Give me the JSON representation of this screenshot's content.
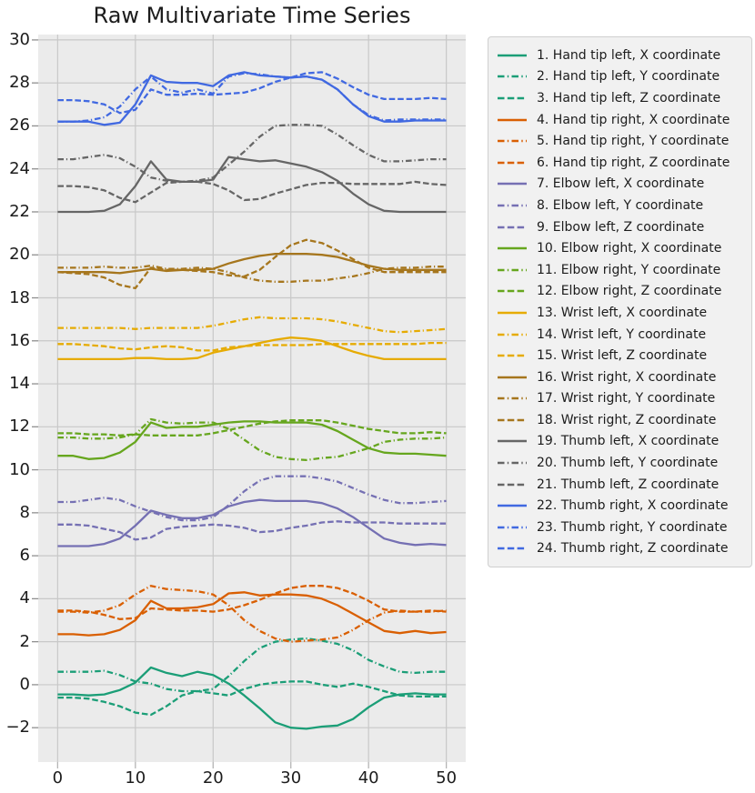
{
  "styles": {
    "plot_bg": "#ebebeb",
    "grid_color": "#c8c8c8",
    "tick_mark_color": "#8f8f8f",
    "bottom_tick_color": "#b5b5b5",
    "text_color": "#1c1c1c",
    "legend_bg": "#f1f1f1",
    "legend_border": "#cfcfcf"
  },
  "axes": {
    "xlim": [
      -2.5,
      52.5
    ],
    "ylim": [
      -3.6,
      30.25
    ],
    "x_tick_values": [
      0,
      10,
      20,
      30,
      40,
      50
    ],
    "x_tick_labels": [
      "0",
      "10",
      "20",
      "30",
      "40",
      "50"
    ],
    "y_tick_values": [
      30,
      28,
      26,
      24,
      22,
      20,
      18,
      16,
      14,
      12,
      10,
      8,
      6,
      4,
      2,
      0,
      -2
    ],
    "y_tick_labels": [
      "30",
      "28",
      "26",
      "24",
      "22",
      "20",
      "18",
      "16",
      "14",
      "12",
      "10",
      "8",
      "6",
      "4",
      "2",
      "0",
      "−2"
    ]
  },
  "chart_data": {
    "type": "line",
    "title": "Raw Multivariate Time Series",
    "grid": true,
    "legend_position": "right",
    "xlim": [
      -2.5,
      52.5
    ],
    "ylim": [
      -3.6,
      30.25
    ],
    "x": [
      0,
      2,
      4,
      6,
      8,
      10,
      12,
      14,
      16,
      18,
      20,
      22,
      24,
      26,
      28,
      30,
      32,
      34,
      36,
      38,
      40,
      42,
      44,
      46,
      48,
      50
    ],
    "series": [
      {
        "name": "1. Hand tip left, X coordinate",
        "color": "#1b9e77",
        "dash": "solid",
        "values": [
          -0.45,
          -0.45,
          -0.5,
          -0.45,
          -0.25,
          0.1,
          0.8,
          0.55,
          0.4,
          0.6,
          0.45,
          0.05,
          -0.5,
          -1.1,
          -1.75,
          -2.0,
          -2.05,
          -1.95,
          -1.9,
          -1.6,
          -1.05,
          -0.6,
          -0.45,
          -0.4,
          -0.45,
          -0.45
        ]
      },
      {
        "name": "2. Hand tip left, Y coordinate",
        "color": "#1b9e77",
        "dash": "dashdot",
        "values": [
          0.6,
          0.6,
          0.6,
          0.65,
          0.45,
          0.15,
          0.05,
          -0.2,
          -0.3,
          -0.3,
          -0.2,
          0.4,
          1.1,
          1.7,
          2.0,
          2.1,
          2.15,
          2.05,
          1.9,
          1.6,
          1.15,
          0.85,
          0.6,
          0.55,
          0.6,
          0.6
        ]
      },
      {
        "name": "3. Hand tip left, Z coordinate",
        "color": "#1b9e77",
        "dash": "dashed",
        "values": [
          -0.6,
          -0.6,
          -0.65,
          -0.8,
          -1.0,
          -1.3,
          -1.4,
          -1.0,
          -0.5,
          -0.3,
          -0.4,
          -0.5,
          -0.2,
          0.0,
          0.1,
          0.15,
          0.15,
          0.0,
          -0.1,
          0.05,
          -0.1,
          -0.3,
          -0.5,
          -0.55,
          -0.55,
          -0.55
        ]
      },
      {
        "name": "4. Hand tip right, X coordinate",
        "color": "#d95f02",
        "dash": "solid",
        "values": [
          2.35,
          2.35,
          2.3,
          2.35,
          2.55,
          3.0,
          3.9,
          3.55,
          3.55,
          3.6,
          3.75,
          4.25,
          4.3,
          4.15,
          4.2,
          4.2,
          4.15,
          4.0,
          3.7,
          3.3,
          2.9,
          2.5,
          2.4,
          2.5,
          2.4,
          2.45
        ]
      },
      {
        "name": "5. Hand tip right, Y coordinate",
        "color": "#d95f02",
        "dash": "dashdot",
        "values": [
          3.4,
          3.4,
          3.35,
          3.45,
          3.7,
          4.2,
          4.6,
          4.45,
          4.4,
          4.35,
          4.2,
          3.7,
          3.0,
          2.5,
          2.15,
          2.0,
          2.05,
          2.1,
          2.2,
          2.55,
          3.0,
          3.35,
          3.45,
          3.4,
          3.4,
          3.45
        ]
      },
      {
        "name": "6. Hand tip right, Z coordinate",
        "color": "#d95f02",
        "dash": "dashed",
        "values": [
          3.45,
          3.45,
          3.4,
          3.25,
          3.05,
          3.1,
          3.55,
          3.5,
          3.45,
          3.45,
          3.4,
          3.5,
          3.7,
          3.95,
          4.25,
          4.5,
          4.6,
          4.6,
          4.5,
          4.25,
          3.9,
          3.5,
          3.4,
          3.4,
          3.45,
          3.4
        ]
      },
      {
        "name": "7. Elbow left, X coordinate",
        "color": "#7570b3",
        "dash": "solid",
        "values": [
          6.45,
          6.45,
          6.45,
          6.55,
          6.8,
          7.4,
          8.1,
          7.9,
          7.75,
          7.75,
          7.9,
          8.3,
          8.5,
          8.6,
          8.55,
          8.55,
          8.55,
          8.45,
          8.2,
          7.8,
          7.3,
          6.8,
          6.6,
          6.5,
          6.55,
          6.5
        ]
      },
      {
        "name": "8. Elbow left, Y coordinate",
        "color": "#7570b3",
        "dash": "dashdot",
        "values": [
          8.5,
          8.5,
          8.6,
          8.7,
          8.6,
          8.3,
          8.05,
          7.8,
          7.65,
          7.65,
          7.8,
          8.35,
          9.0,
          9.5,
          9.7,
          9.7,
          9.7,
          9.6,
          9.45,
          9.15,
          8.85,
          8.6,
          8.45,
          8.45,
          8.5,
          8.55
        ]
      },
      {
        "name": "9. Elbow left, Z coordinate",
        "color": "#7570b3",
        "dash": "dashed",
        "values": [
          7.45,
          7.45,
          7.4,
          7.25,
          7.1,
          6.75,
          6.85,
          7.25,
          7.35,
          7.4,
          7.45,
          7.4,
          7.3,
          7.1,
          7.15,
          7.3,
          7.4,
          7.55,
          7.6,
          7.55,
          7.55,
          7.55,
          7.5,
          7.5,
          7.5,
          7.5
        ]
      },
      {
        "name": "10. Elbow right, X coordinate",
        "color": "#66a61e",
        "dash": "solid",
        "values": [
          10.65,
          10.65,
          10.5,
          10.55,
          10.8,
          11.3,
          12.2,
          11.95,
          12.0,
          12.0,
          12.1,
          12.2,
          12.25,
          12.25,
          12.2,
          12.2,
          12.2,
          12.1,
          11.8,
          11.4,
          11.0,
          10.8,
          10.75,
          10.75,
          10.7,
          10.65
        ]
      },
      {
        "name": "11. Elbow right, Y coordinate",
        "color": "#66a61e",
        "dash": "dashdot",
        "values": [
          11.5,
          11.5,
          11.45,
          11.45,
          11.5,
          11.65,
          12.35,
          12.2,
          12.15,
          12.2,
          12.2,
          11.9,
          11.4,
          10.9,
          10.6,
          10.5,
          10.45,
          10.55,
          10.6,
          10.8,
          11.0,
          11.3,
          11.4,
          11.45,
          11.45,
          11.5
        ]
      },
      {
        "name": "12. Elbow right, Z coordinate",
        "color": "#66a61e",
        "dash": "dashed",
        "values": [
          11.7,
          11.7,
          11.65,
          11.65,
          11.6,
          11.65,
          11.6,
          11.6,
          11.6,
          11.6,
          11.7,
          11.85,
          12.0,
          12.15,
          12.25,
          12.3,
          12.3,
          12.3,
          12.2,
          12.05,
          11.9,
          11.8,
          11.7,
          11.7,
          11.75,
          11.7
        ]
      },
      {
        "name": "13. Wrist left, X coordinate",
        "color": "#e6ab02",
        "dash": "solid",
        "values": [
          15.15,
          15.15,
          15.15,
          15.15,
          15.15,
          15.2,
          15.2,
          15.15,
          15.15,
          15.2,
          15.45,
          15.6,
          15.75,
          15.9,
          16.05,
          16.15,
          16.1,
          16.0,
          15.75,
          15.5,
          15.3,
          15.15,
          15.15,
          15.15,
          15.15,
          15.15
        ]
      },
      {
        "name": "14. Wrist left, Y coordinate",
        "color": "#e6ab02",
        "dash": "dashdot",
        "values": [
          16.6,
          16.6,
          16.6,
          16.6,
          16.6,
          16.55,
          16.6,
          16.6,
          16.6,
          16.6,
          16.7,
          16.85,
          17.0,
          17.1,
          17.05,
          17.05,
          17.05,
          17.0,
          16.9,
          16.75,
          16.6,
          16.45,
          16.4,
          16.45,
          16.5,
          16.55
        ]
      },
      {
        "name": "15. Wrist left, Z coordinate",
        "color": "#e6ab02",
        "dash": "dashed",
        "values": [
          15.85,
          15.85,
          15.8,
          15.75,
          15.65,
          15.6,
          15.7,
          15.75,
          15.7,
          15.55,
          15.55,
          15.7,
          15.75,
          15.8,
          15.8,
          15.8,
          15.8,
          15.85,
          15.85,
          15.85,
          15.85,
          15.85,
          15.85,
          15.85,
          15.9,
          15.9
        ]
      },
      {
        "name": "16. Wrist right, X coordinate",
        "color": "#a6761d",
        "dash": "solid",
        "values": [
          19.2,
          19.2,
          19.2,
          19.2,
          19.15,
          19.25,
          19.35,
          19.25,
          19.3,
          19.3,
          19.35,
          19.6,
          19.8,
          19.95,
          20.05,
          20.05,
          20.05,
          20.0,
          19.9,
          19.7,
          19.5,
          19.35,
          19.3,
          19.3,
          19.3,
          19.3
        ]
      },
      {
        "name": "17. Wrist right, Y coordinate",
        "color": "#a6761d",
        "dash": "dashdot",
        "values": [
          19.4,
          19.4,
          19.4,
          19.45,
          19.4,
          19.4,
          19.5,
          19.35,
          19.35,
          19.4,
          19.35,
          19.2,
          18.95,
          18.8,
          18.75,
          18.75,
          18.8,
          18.8,
          18.9,
          19.0,
          19.15,
          19.35,
          19.4,
          19.4,
          19.45,
          19.45
        ]
      },
      {
        "name": "18. Wrist right, Z coordinate",
        "color": "#a6761d",
        "dash": "dashed",
        "values": [
          19.2,
          19.15,
          19.1,
          18.95,
          18.6,
          18.45,
          19.4,
          19.3,
          19.3,
          19.25,
          19.2,
          19.05,
          19.0,
          19.3,
          19.9,
          20.45,
          20.7,
          20.55,
          20.2,
          19.8,
          19.4,
          19.2,
          19.2,
          19.2,
          19.2,
          19.2
        ]
      },
      {
        "name": "19. Thumb left, X coordinate",
        "color": "#666666",
        "dash": "solid",
        "values": [
          22.0,
          22.0,
          22.0,
          22.05,
          22.35,
          23.2,
          24.35,
          23.5,
          23.4,
          23.4,
          23.5,
          24.55,
          24.45,
          24.35,
          24.4,
          24.25,
          24.1,
          23.85,
          23.45,
          22.85,
          22.35,
          22.05,
          22.0,
          22.0,
          22.0,
          22.0
        ]
      },
      {
        "name": "20. Thumb left, Y coordinate",
        "color": "#666666",
        "dash": "dashdot",
        "values": [
          24.45,
          24.45,
          24.55,
          24.65,
          24.5,
          24.1,
          23.6,
          23.45,
          23.4,
          23.45,
          23.6,
          24.2,
          24.8,
          25.5,
          26.0,
          26.05,
          26.05,
          26.0,
          25.6,
          25.1,
          24.65,
          24.35,
          24.35,
          24.4,
          24.45,
          24.45
        ]
      },
      {
        "name": "21. Thumb left, Z coordinate",
        "color": "#666666",
        "dash": "dashed",
        "values": [
          23.2,
          23.2,
          23.15,
          23.0,
          22.65,
          22.45,
          22.9,
          23.35,
          23.4,
          23.4,
          23.3,
          23.0,
          22.55,
          22.6,
          22.85,
          23.05,
          23.25,
          23.35,
          23.35,
          23.3,
          23.3,
          23.3,
          23.3,
          23.4,
          23.3,
          23.25
        ]
      },
      {
        "name": "22. Thumb right, X coordinate",
        "color": "#4169e1",
        "dash": "solid",
        "values": [
          26.2,
          26.2,
          26.2,
          26.05,
          26.15,
          27.0,
          28.35,
          28.05,
          28.0,
          28.0,
          27.85,
          28.35,
          28.5,
          28.35,
          28.3,
          28.25,
          28.3,
          28.15,
          27.7,
          27.0,
          26.45,
          26.2,
          26.2,
          26.25,
          26.25,
          26.25
        ]
      },
      {
        "name": "23. Thumb right, Y coordinate",
        "color": "#4169e1",
        "dash": "dashdot",
        "values": [
          26.2,
          26.2,
          26.25,
          26.4,
          26.9,
          27.7,
          28.3,
          27.7,
          27.55,
          27.7,
          27.5,
          28.3,
          28.45,
          28.4,
          28.3,
          28.25,
          28.3,
          28.15,
          27.7,
          27.0,
          26.5,
          26.25,
          26.3,
          26.3,
          26.3,
          26.3
        ]
      },
      {
        "name": "24. Thumb right, Z coordinate",
        "color": "#4169e1",
        "dash": "dashed",
        "values": [
          27.2,
          27.2,
          27.15,
          27.0,
          26.6,
          26.75,
          27.7,
          27.45,
          27.45,
          27.5,
          27.45,
          27.5,
          27.55,
          27.75,
          28.05,
          28.25,
          28.45,
          28.5,
          28.2,
          27.8,
          27.45,
          27.25,
          27.25,
          27.25,
          27.3,
          27.25
        ]
      }
    ]
  }
}
